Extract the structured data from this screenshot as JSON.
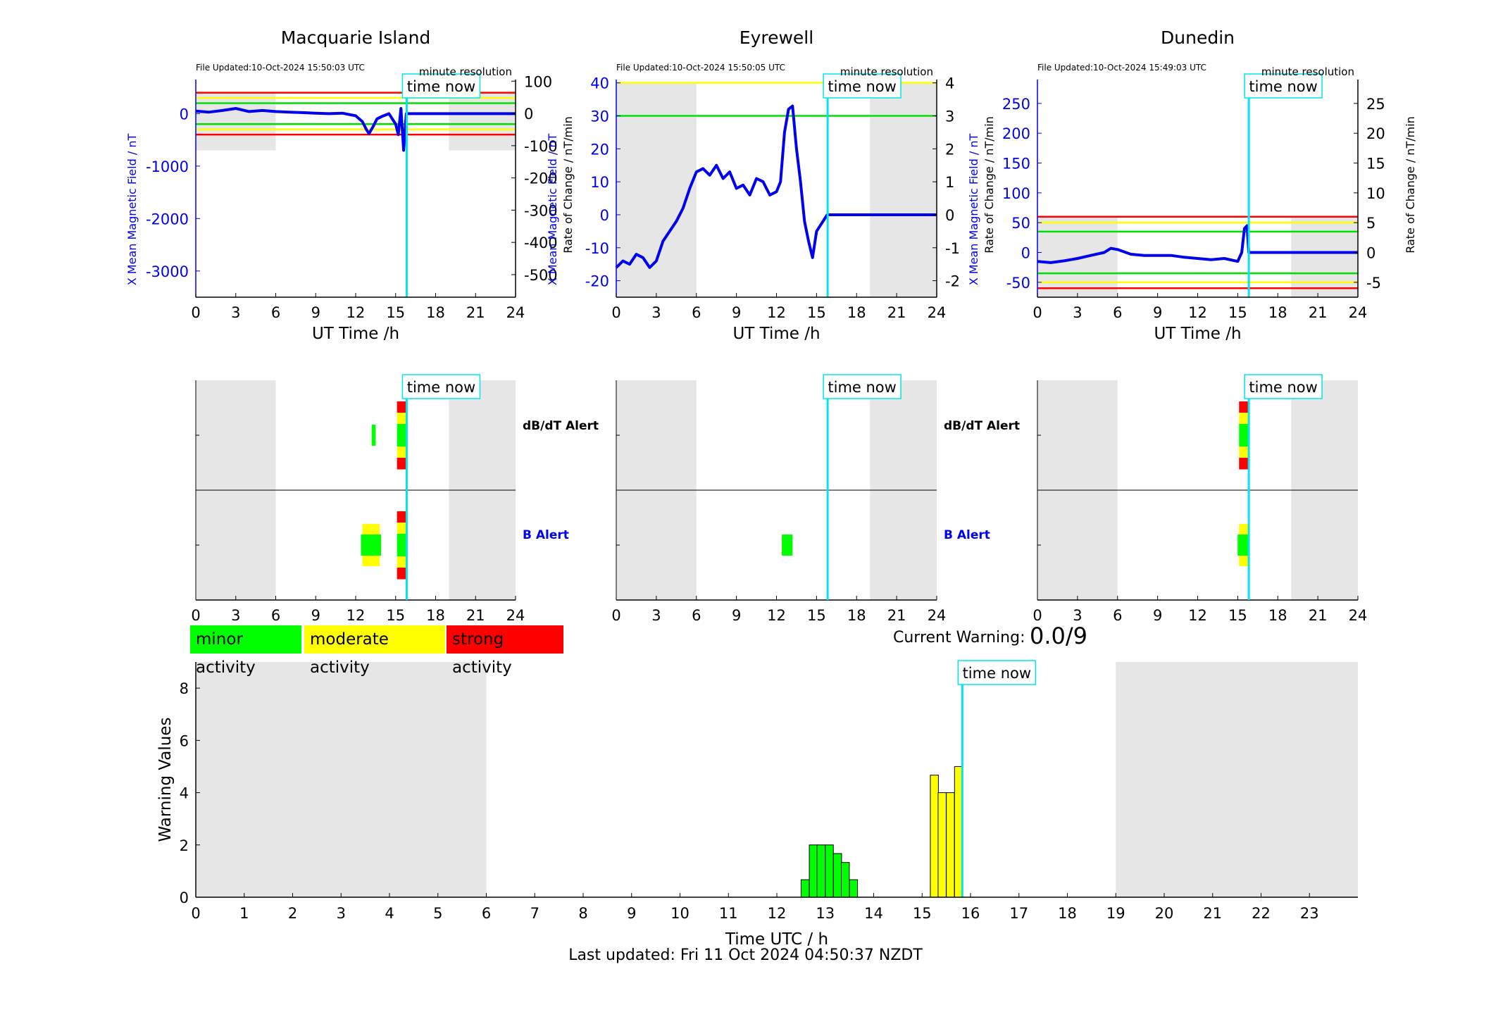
{
  "chart_data": [
    {
      "type": "line",
      "title": "Macquarie Island",
      "file_updated": "File Updated:10-Oct-2024 15:50:03 UTC",
      "resolution": "minute resolution",
      "time_now_label": "time now",
      "xlabel": "UT Time /h",
      "ylabel_left": "X Mean Magnetic Field / nT",
      "ylabel_right": "Rate of Change / nT/min",
      "xlim": [
        0,
        24
      ],
      "xticks": [
        0,
        3,
        6,
        9,
        12,
        15,
        18,
        21,
        24
      ],
      "ylim_left": [
        -3500,
        650
      ],
      "yticks_left": [
        0,
        -1000,
        -2000,
        -3000
      ],
      "ylim_right": [
        -570,
        105
      ],
      "yticks_right": [
        100,
        0,
        -100,
        -200,
        -300,
        -400,
        -500
      ],
      "night_shading_h": [
        [
          0,
          6
        ],
        [
          19,
          24
        ]
      ],
      "shade_ylim_left": [
        -700,
        400
      ],
      "thresholds_left": [
        {
          "value": 400,
          "color": "#ff0000"
        },
        {
          "value": 300,
          "color": "#ffff00"
        },
        {
          "value": 200,
          "color": "#00e000"
        },
        {
          "value": -200,
          "color": "#00e000"
        },
        {
          "value": -300,
          "color": "#ffff00"
        },
        {
          "value": -400,
          "color": "#ff0000"
        }
      ],
      "time_now_h": 15.83,
      "series": [
        {
          "x": [
            0,
            1,
            2,
            3,
            4,
            5,
            6,
            7,
            8,
            9,
            10,
            11,
            12,
            12.5,
            12.8,
            13.0,
            13.3,
            13.6,
            14,
            14.5,
            15,
            15.2,
            15.4,
            15.6,
            15.8,
            24
          ],
          "values": [
            50,
            30,
            60,
            100,
            40,
            60,
            40,
            30,
            20,
            10,
            0,
            10,
            -40,
            -150,
            -300,
            -380,
            -250,
            -100,
            -50,
            0,
            -200,
            -400,
            100,
            -700,
            0,
            0
          ]
        }
      ]
    },
    {
      "type": "line",
      "title": "Eyrewell",
      "file_updated": "File Updated:10-Oct-2024 15:50:05 UTC",
      "resolution": "minute resolution",
      "time_now_label": "time now",
      "xlabel": "UT Time /h",
      "ylabel_left": "X Mean Magnetic Field / nT",
      "ylabel_right": "Rate of Change / nT/min",
      "xlim": [
        0,
        24
      ],
      "xticks": [
        0,
        3,
        6,
        9,
        12,
        15,
        18,
        21,
        24
      ],
      "ylim_left": [
        -25,
        41
      ],
      "yticks_left": [
        40,
        30,
        20,
        10,
        0,
        -10,
        -20
      ],
      "ylim_right": [
        -2.5,
        4.1
      ],
      "yticks_right": [
        4,
        3,
        2,
        1,
        0,
        -1,
        -2
      ],
      "night_shading_h": [
        [
          0,
          6
        ],
        [
          19,
          24
        ]
      ],
      "shade_ylim_left": [
        -25,
        40
      ],
      "thresholds_left": [
        {
          "value": 40,
          "color": "#ffff00"
        },
        {
          "value": 30,
          "color": "#00e000"
        }
      ],
      "time_now_h": 15.83,
      "series": [
        {
          "x": [
            0,
            0.5,
            1,
            1.5,
            2,
            2.5,
            3,
            3.5,
            4,
            4.5,
            5,
            5.5,
            6,
            6.5,
            7,
            7.5,
            8,
            8.5,
            9,
            9.5,
            10,
            10.5,
            11,
            11.5,
            12,
            12.3,
            12.6,
            12.9,
            13.2,
            13.5,
            13.8,
            14.1,
            14.4,
            14.7,
            15.0,
            15.8,
            24
          ],
          "values": [
            -16,
            -14,
            -15,
            -12,
            -13,
            -16,
            -14,
            -8,
            -5,
            -2,
            2,
            8,
            13,
            14,
            12,
            15,
            11,
            13,
            8,
            9,
            6,
            11,
            10,
            6,
            7,
            10,
            25,
            32,
            33,
            20,
            10,
            -2,
            -8,
            -13,
            -5,
            0,
            0
          ]
        }
      ]
    },
    {
      "type": "line",
      "title": "Dunedin",
      "file_updated": "File Updated:10-Oct-2024 15:49:03 UTC",
      "resolution": "minute resolution",
      "time_now_label": "time now",
      "xlabel": "UT Time /h",
      "ylabel_left": "X Mean Magnetic Field / nT",
      "ylabel_right": "Rate of Change / nT/min",
      "xlim": [
        0,
        24
      ],
      "xticks": [
        0,
        3,
        6,
        9,
        12,
        15,
        18,
        21,
        24
      ],
      "ylim_left": [
        -75,
        290
      ],
      "yticks_left": [
        250,
        200,
        150,
        100,
        50,
        0,
        -50
      ],
      "ylim_right": [
        -7.5,
        29
      ],
      "yticks_right": [
        25,
        20,
        15,
        10,
        5,
        0,
        -5
      ],
      "night_shading_h": [
        [
          0,
          6
        ],
        [
          19,
          24
        ]
      ],
      "shade_ylim_left": [
        -75,
        60
      ],
      "thresholds_left": [
        {
          "value": 60,
          "color": "#ff0000"
        },
        {
          "value": 50,
          "color": "#ffff00"
        },
        {
          "value": 35,
          "color": "#00e000"
        },
        {
          "value": -35,
          "color": "#00e000"
        },
        {
          "value": -50,
          "color": "#ffff00"
        },
        {
          "value": -60,
          "color": "#ff0000"
        }
      ],
      "time_now_h": 15.83,
      "series": [
        {
          "x": [
            0,
            1,
            2,
            3,
            4,
            5,
            5.5,
            6,
            7,
            8,
            9,
            10,
            11,
            12,
            13,
            14,
            15,
            15.3,
            15.5,
            15.7,
            15.83,
            24
          ],
          "values": [
            -15,
            -17,
            -14,
            -10,
            -5,
            0,
            7,
            5,
            -3,
            -5,
            -5,
            -5,
            -8,
            -10,
            -12,
            -10,
            -15,
            0,
            40,
            45,
            0,
            0
          ]
        }
      ]
    },
    {
      "type": "bar",
      "title": "dB/dT Alert / B Alert",
      "labels": {
        "dbdt": "dB/dT Alert",
        "b": "B Alert",
        "time_now": "time now"
      },
      "xlim": [
        0,
        24
      ],
      "xticks": [
        0,
        3,
        6,
        9,
        12,
        15,
        18,
        21,
        24
      ],
      "night_shading_h": [
        [
          0,
          6
        ],
        [
          19,
          24
        ]
      ],
      "stations": [
        {
          "name": "Macquarie Island",
          "dbdt": [
            {
              "start": 13.2,
              "end": 13.5,
              "level": "minor"
            },
            {
              "start": 15.1,
              "end": 15.8,
              "level": "strong"
            }
          ],
          "b": [
            {
              "start": 12.5,
              "end": 13.8,
              "level": "moderate"
            },
            {
              "start": 15.1,
              "end": 15.8,
              "level": "strong"
            }
          ]
        },
        {
          "name": "Eyrewell",
          "dbdt": [],
          "b": [
            {
              "start": 12.4,
              "end": 13.2,
              "level": "minor"
            }
          ]
        },
        {
          "name": "Dunedin",
          "dbdt": [
            {
              "start": 15.1,
              "end": 15.8,
              "level": "strong"
            }
          ],
          "b": [
            {
              "start": 15.1,
              "end": 15.8,
              "level": "moderate"
            }
          ]
        }
      ],
      "legend": [
        {
          "label": "minor activity",
          "color": "#00ff00"
        },
        {
          "label": "moderate activity",
          "color": "#ffff00"
        },
        {
          "label": "strong activity",
          "color": "#ff0000"
        }
      ]
    },
    {
      "type": "bar",
      "xlabel": "Time UTC / h",
      "ylabel": "Warning Values",
      "xlim": [
        0,
        24
      ],
      "xticks": [
        0,
        1,
        2,
        3,
        4,
        5,
        6,
        7,
        8,
        9,
        10,
        11,
        12,
        13,
        14,
        15,
        16,
        17,
        18,
        19,
        20,
        21,
        22,
        23
      ],
      "ylim": [
        0,
        9
      ],
      "yticks": [
        0,
        2,
        4,
        6,
        8
      ],
      "night_shading_h": [
        [
          0,
          6
        ],
        [
          19,
          24
        ]
      ],
      "time_now_h": 15.83,
      "time_now_label": "time now",
      "bar_width_h": 0.1667,
      "bars": [
        {
          "x": 12.5,
          "value": 0.67,
          "color": "#00ff00"
        },
        {
          "x": 12.67,
          "value": 2,
          "color": "#00ff00"
        },
        {
          "x": 12.83,
          "value": 2,
          "color": "#00ff00"
        },
        {
          "x": 13.0,
          "value": 2,
          "color": "#00ff00"
        },
        {
          "x": 13.17,
          "value": 1.67,
          "color": "#00ff00"
        },
        {
          "x": 13.33,
          "value": 1.33,
          "color": "#00ff00"
        },
        {
          "x": 13.5,
          "value": 0.67,
          "color": "#00ff00"
        },
        {
          "x": 15.17,
          "value": 4.67,
          "color": "#ffff00"
        },
        {
          "x": 15.33,
          "value": 4,
          "color": "#ffff00"
        },
        {
          "x": 15.5,
          "value": 4,
          "color": "#ffff00"
        },
        {
          "x": 15.67,
          "value": 5,
          "color": "#ffff00"
        }
      ]
    }
  ],
  "current_warning": {
    "label": "Current Warning:",
    "value": "0.0/9"
  },
  "footer": "Last updated: Fri 11 Oct 2024 04:50:37 NZDT"
}
